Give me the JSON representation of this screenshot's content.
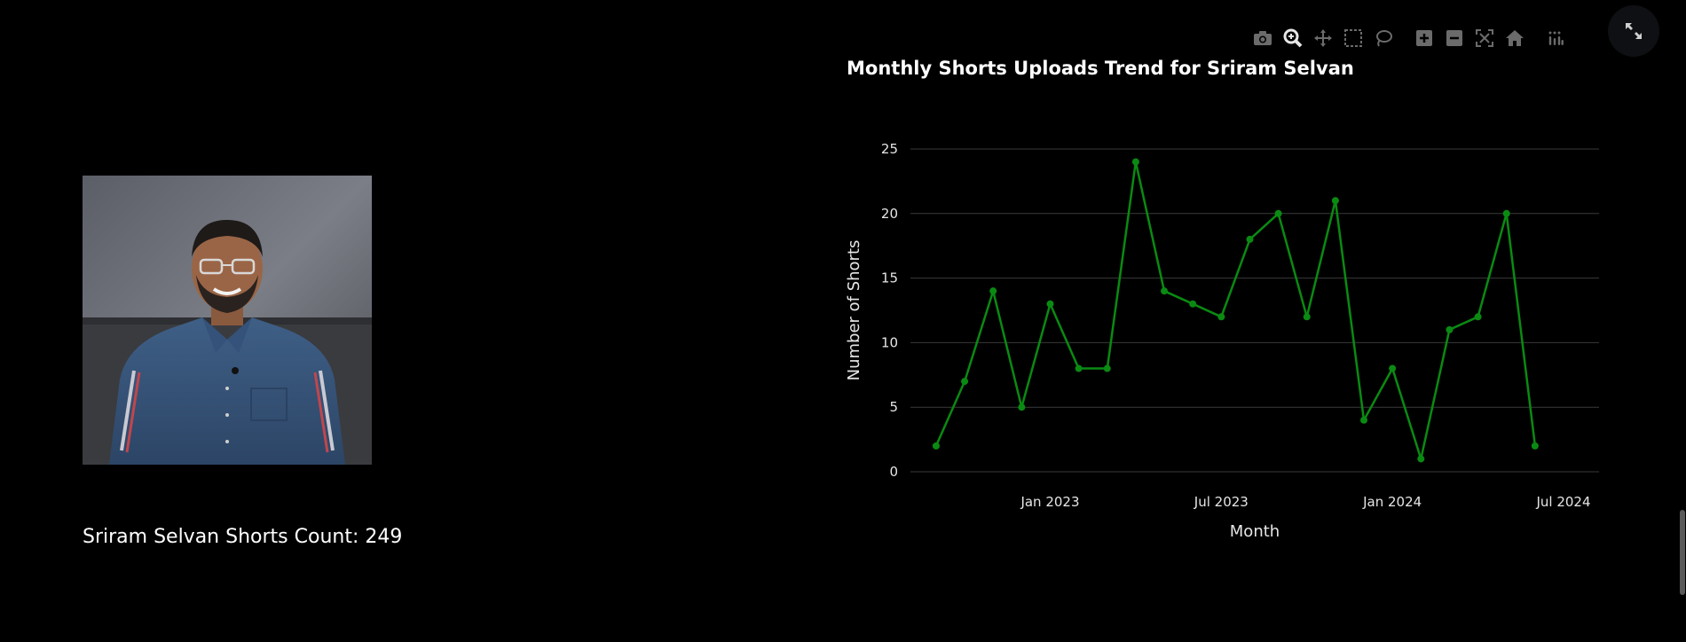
{
  "profile": {
    "name_label": "Sriram Selvan Shorts Count: 249",
    "photo_icon": "person-portrait"
  },
  "modebar": {
    "buttons": [
      {
        "name": "camera-icon",
        "title": "Download plot as a png"
      },
      {
        "name": "zoom-icon",
        "title": "Zoom"
      },
      {
        "name": "pan-icon",
        "title": "Pan"
      },
      {
        "name": "box-select-icon",
        "title": "Box Select"
      },
      {
        "name": "lasso-select-icon",
        "title": "Lasso Select"
      },
      {
        "name": "zoom-in-icon",
        "title": "Zoom in"
      },
      {
        "name": "zoom-out-icon",
        "title": "Zoom out"
      },
      {
        "name": "autoscale-icon",
        "title": "Autoscale"
      },
      {
        "name": "reset-axes-icon",
        "title": "Reset axes"
      },
      {
        "name": "plotly-logo-icon",
        "title": "Produced with Plotly"
      }
    ],
    "expand_icon": "expand-icon"
  },
  "colors": {
    "background": "#000000",
    "line": "#0a8a12",
    "grid": "#3a3a3a",
    "text": "#e6e6e6",
    "active_tool": "#e6e6e6",
    "inactive_tool": "#6b6b6b"
  },
  "chart_data": {
    "type": "line",
    "title": "Monthly Shorts Uploads Trend for Sriram Selvan",
    "xlabel": "Month",
    "ylabel": "Number of Shorts",
    "x": [
      "2022-09",
      "2022-10",
      "2022-11",
      "2022-12",
      "2023-01",
      "2023-02",
      "2023-03",
      "2023-04",
      "2023-05",
      "2023-06",
      "2023-07",
      "2023-08",
      "2023-09",
      "2023-10",
      "2023-11",
      "2023-12",
      "2024-01",
      "2024-02",
      "2024-03",
      "2024-04",
      "2024-05",
      "2024-06"
    ],
    "values": [
      2,
      7,
      14,
      5,
      13,
      8,
      8,
      24,
      14,
      13,
      12,
      18,
      20,
      12,
      21,
      4,
      8,
      1,
      11,
      12,
      20,
      2
    ],
    "x_ticks": [
      "Jan 2023",
      "Jul 2023",
      "Jan 2024",
      "Jul 2024"
    ],
    "x_tick_dates": [
      "2023-01",
      "2023-07",
      "2024-01",
      "2024-07"
    ],
    "y_ticks": [
      0,
      5,
      10,
      15,
      20,
      25
    ],
    "ylim": [
      0,
      25
    ],
    "xlim": [
      "2022-09",
      "2024-07"
    ],
    "grid": true,
    "legend": "none"
  }
}
